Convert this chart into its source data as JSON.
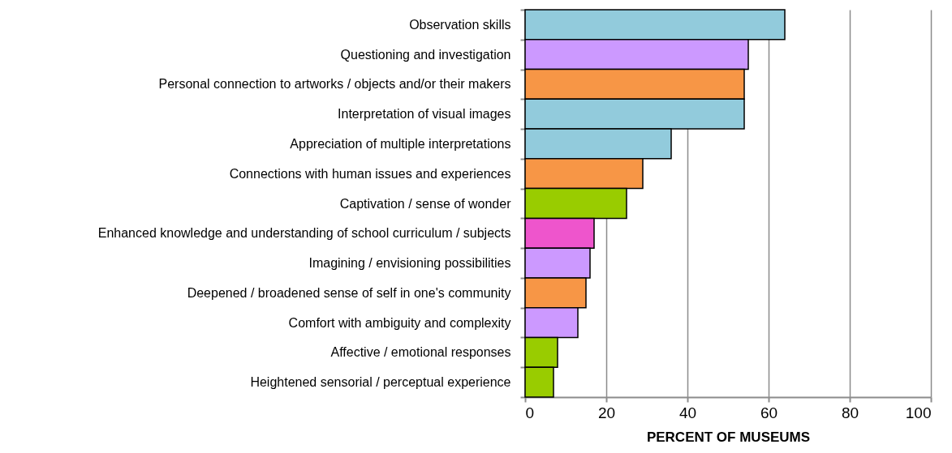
{
  "chart_data": {
    "type": "bar",
    "orientation": "horizontal",
    "xlabel": "PERCENT OF MUSEUMS",
    "categories": [
      "Observation skills",
      "Questioning and investigation",
      "Personal connection to artworks / objects and/or their makers",
      "Interpretation of visual images",
      "Appreciation of multiple interpretations",
      "Connections with human issues and experiences",
      "Captivation / sense of wonder",
      "Enhanced knowledge and understanding of school curriculum / subjects",
      "Imagining / envisioning possibilities",
      "Deepened / broadened sense of self in one's community",
      "Comfort with ambiguity and complexity",
      "Affective / emotional responses",
      "Heightened sensorial / perceptual experience"
    ],
    "values": [
      64,
      55,
      54,
      54,
      36,
      29,
      25,
      17,
      16,
      15,
      13,
      8,
      7
    ],
    "colors": [
      "#92cbdc",
      "#cc99ff",
      "#f79646",
      "#92cbdc",
      "#92cbdc",
      "#f79646",
      "#99cc00",
      "#ee55cc",
      "#cc99ff",
      "#f79646",
      "#cc99ff",
      "#99cc00",
      "#99cc00"
    ],
    "xlim": [
      0,
      100
    ],
    "xticks": [
      0,
      20,
      40,
      60,
      80,
      100
    ],
    "grid": "x"
  }
}
